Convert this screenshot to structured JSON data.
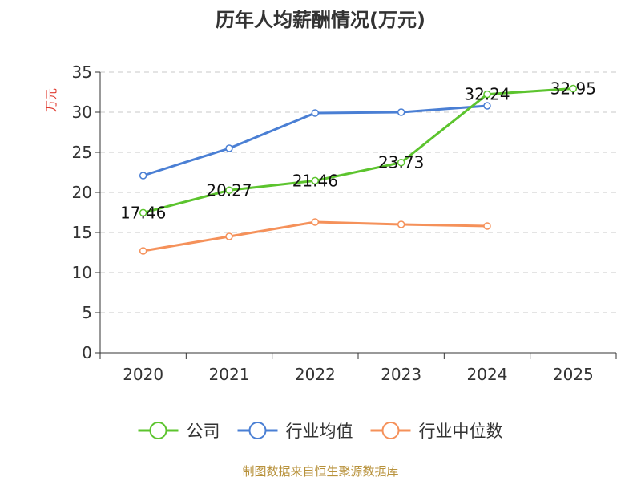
{
  "chart_data": {
    "type": "line",
    "title": "历年人均薪酬情况(万元)",
    "ylabel": "万元",
    "xlabel": "",
    "categories": [
      "2020",
      "2021",
      "2022",
      "2023",
      "2024",
      "2025"
    ],
    "ylim": [
      0,
      35
    ],
    "yticks": [
      0,
      5,
      10,
      15,
      20,
      25,
      30,
      35
    ],
    "grid": true,
    "legend_position": "bottom",
    "series": [
      {
        "name": "公司",
        "color": "#5cc42e",
        "values": [
          17.46,
          20.27,
          21.46,
          23.73,
          32.24,
          32.95
        ],
        "labels": [
          "17.46",
          "20.27",
          "21.46",
          "23.73",
          "32.24",
          "32.95"
        ]
      },
      {
        "name": "行业均值",
        "color": "#4a7fd4",
        "values": [
          22.1,
          25.5,
          29.9,
          30.0,
          30.8,
          null
        ],
        "labels": []
      },
      {
        "name": "行业中位数",
        "color": "#f5915a",
        "values": [
          12.7,
          14.5,
          16.3,
          16.0,
          15.8,
          null
        ],
        "labels": []
      }
    ],
    "source": "制图数据来自恒生聚源数据库"
  }
}
